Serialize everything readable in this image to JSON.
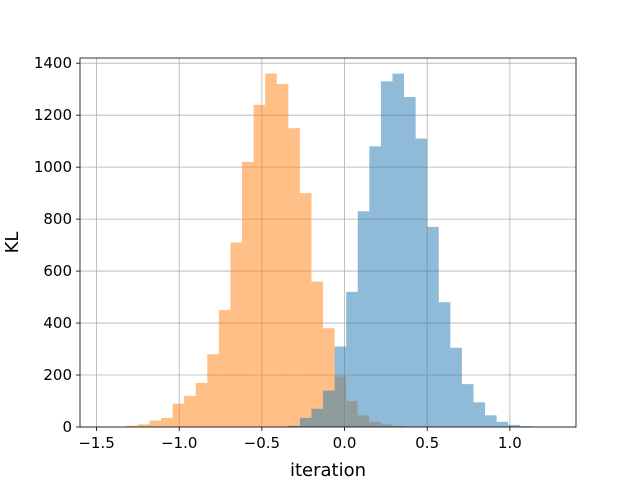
{
  "chart_data": {
    "type": "bar",
    "title": "",
    "xlabel": "iteration",
    "ylabel": "KL",
    "xlim": [
      -1.6,
      1.4
    ],
    "ylim": [
      0,
      1420
    ],
    "grid": true,
    "legend": "none",
    "xticks": [
      -1.5,
      -1.0,
      -0.5,
      0.0,
      0.5,
      1.0
    ],
    "xtick_labels": [
      "−1.5",
      "−1.0",
      "−0.5",
      "0.0",
      "0.5",
      "1.0"
    ],
    "yticks": [
      0,
      200,
      400,
      600,
      800,
      1000,
      1200,
      1400
    ],
    "ytick_labels": [
      "0",
      "200",
      "400",
      "600",
      "800",
      "1000",
      "1200",
      "1400"
    ],
    "series": [
      {
        "color": "#ff7f0e",
        "opacity": 0.5,
        "bins": [
          {
            "x0": -1.32,
            "x1": -1.25,
            "value": 5
          },
          {
            "x0": -1.25,
            "x1": -1.18,
            "value": 10
          },
          {
            "x0": -1.18,
            "x1": -1.11,
            "value": 25
          },
          {
            "x0": -1.11,
            "x1": -1.04,
            "value": 35
          },
          {
            "x0": -1.04,
            "x1": -0.97,
            "value": 90
          },
          {
            "x0": -0.97,
            "x1": -0.9,
            "value": 120
          },
          {
            "x0": -0.9,
            "x1": -0.83,
            "value": 170
          },
          {
            "x0": -0.83,
            "x1": -0.76,
            "value": 280
          },
          {
            "x0": -0.76,
            "x1": -0.69,
            "value": 450
          },
          {
            "x0": -0.69,
            "x1": -0.62,
            "value": 710
          },
          {
            "x0": -0.62,
            "x1": -0.55,
            "value": 1020
          },
          {
            "x0": -0.55,
            "x1": -0.48,
            "value": 1240
          },
          {
            "x0": -0.48,
            "x1": -0.41,
            "value": 1360
          },
          {
            "x0": -0.41,
            "x1": -0.34,
            "value": 1320
          },
          {
            "x0": -0.34,
            "x1": -0.27,
            "value": 1150
          },
          {
            "x0": -0.27,
            "x1": -0.2,
            "value": 900
          },
          {
            "x0": -0.2,
            "x1": -0.13,
            "value": 560
          },
          {
            "x0": -0.13,
            "x1": -0.06,
            "value": 380
          },
          {
            "x0": -0.06,
            "x1": 0.01,
            "value": 195
          },
          {
            "x0": 0.01,
            "x1": 0.08,
            "value": 100
          },
          {
            "x0": 0.08,
            "x1": 0.15,
            "value": 45
          },
          {
            "x0": 0.15,
            "x1": 0.22,
            "value": 20
          },
          {
            "x0": 0.22,
            "x1": 0.29,
            "value": 10
          },
          {
            "x0": 0.29,
            "x1": 0.36,
            "value": 4
          }
        ]
      },
      {
        "color": "#1f77b4",
        "opacity": 0.5,
        "bins": [
          {
            "x0": -0.34,
            "x1": -0.27,
            "value": 5
          },
          {
            "x0": -0.27,
            "x1": -0.2,
            "value": 35
          },
          {
            "x0": -0.2,
            "x1": -0.13,
            "value": 70
          },
          {
            "x0": -0.13,
            "x1": -0.06,
            "value": 140
          },
          {
            "x0": -0.06,
            "x1": 0.01,
            "value": 310
          },
          {
            "x0": 0.01,
            "x1": 0.08,
            "value": 520
          },
          {
            "x0": 0.08,
            "x1": 0.15,
            "value": 830
          },
          {
            "x0": 0.15,
            "x1": 0.22,
            "value": 1080
          },
          {
            "x0": 0.22,
            "x1": 0.29,
            "value": 1330
          },
          {
            "x0": 0.29,
            "x1": 0.36,
            "value": 1360
          },
          {
            "x0": 0.36,
            "x1": 0.43,
            "value": 1270
          },
          {
            "x0": 0.43,
            "x1": 0.5,
            "value": 1110
          },
          {
            "x0": 0.5,
            "x1": 0.57,
            "value": 770
          },
          {
            "x0": 0.57,
            "x1": 0.64,
            "value": 480
          },
          {
            "x0": 0.64,
            "x1": 0.71,
            "value": 305
          },
          {
            "x0": 0.71,
            "x1": 0.78,
            "value": 165
          },
          {
            "x0": 0.78,
            "x1": 0.85,
            "value": 95
          },
          {
            "x0": 0.85,
            "x1": 0.92,
            "value": 45
          },
          {
            "x0": 0.92,
            "x1": 0.99,
            "value": 20
          },
          {
            "x0": 0.99,
            "x1": 1.06,
            "value": 8
          },
          {
            "x0": 1.06,
            "x1": 1.13,
            "value": 3
          }
        ]
      }
    ]
  }
}
